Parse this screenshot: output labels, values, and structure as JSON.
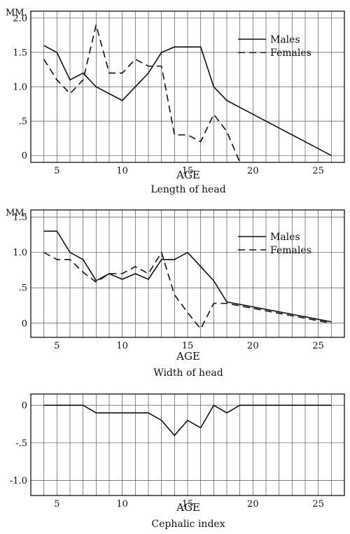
{
  "chart_data": [
    {
      "type": "line",
      "title": "",
      "caption": "Length of head",
      "xlabel": "AGE",
      "ylabel": "MM.",
      "xlim": [
        3,
        27
      ],
      "ylim": [
        -0.1,
        2.1
      ],
      "xticks": [
        5,
        10,
        15,
        20,
        25
      ],
      "xtick_labels": [
        "5",
        "10",
        "15",
        "20",
        "25"
      ],
      "yticks": [
        0,
        0.5,
        1.0,
        1.5,
        2.0
      ],
      "ytick_labels": [
        "0",
        ".5",
        "1.0",
        "1.5",
        "2.0"
      ],
      "grid": "vertical",
      "legend": "top-right",
      "series": [
        {
          "name": "Males",
          "style": "solid",
          "x": [
            4,
            5,
            6,
            7,
            8,
            10,
            12,
            13,
            14,
            16,
            17,
            18,
            26
          ],
          "y": [
            1.6,
            1.5,
            1.1,
            1.2,
            1.0,
            0.8,
            1.2,
            1.5,
            1.58,
            1.58,
            1.0,
            0.8,
            0.0
          ]
        },
        {
          "name": "Females",
          "style": "dashed",
          "x": [
            4,
            5,
            6,
            7,
            8,
            9,
            10,
            11,
            12,
            13,
            14,
            15,
            16,
            17,
            18,
            19
          ],
          "y": [
            1.4,
            1.1,
            0.9,
            1.1,
            1.9,
            1.2,
            1.2,
            1.4,
            1.3,
            1.3,
            0.3,
            0.3,
            0.2,
            0.6,
            0.35,
            -0.1
          ]
        }
      ]
    },
    {
      "type": "line",
      "title": "",
      "caption": "Width of head",
      "xlabel": "AGE",
      "ylabel": "MM.",
      "xlim": [
        3,
        27
      ],
      "ylim": [
        -0.2,
        1.6
      ],
      "xticks": [
        5,
        10,
        15,
        20,
        25
      ],
      "xtick_labels": [
        "5",
        "10",
        "15",
        "20",
        "25"
      ],
      "yticks": [
        0,
        0.5,
        1.0,
        1.5
      ],
      "ytick_labels": [
        "0",
        ".5",
        "1.0",
        "1.5"
      ],
      "grid": "vertical",
      "legend": "top-right",
      "series": [
        {
          "name": "Males",
          "style": "solid",
          "x": [
            4,
            5,
            6,
            7,
            8,
            9,
            10,
            11,
            12,
            13,
            14,
            15,
            16,
            17,
            18,
            26
          ],
          "y": [
            1.3,
            1.3,
            1.0,
            0.9,
            0.6,
            0.7,
            0.62,
            0.7,
            0.62,
            0.9,
            0.9,
            1.0,
            0.8,
            0.6,
            0.3,
            0.02
          ]
        },
        {
          "name": "Females",
          "style": "dashed",
          "x": [
            4,
            5,
            6,
            7,
            8,
            9,
            10,
            11,
            12,
            13,
            14,
            15,
            16,
            17,
            18,
            26
          ],
          "y": [
            1.0,
            0.9,
            0.9,
            0.72,
            0.58,
            0.7,
            0.7,
            0.8,
            0.7,
            1.0,
            0.4,
            0.15,
            -0.08,
            0.28,
            0.28,
            0.0
          ]
        }
      ]
    },
    {
      "type": "line",
      "title": "",
      "caption": "Cephalic index",
      "xlabel": "AGE",
      "ylabel": "",
      "xlim": [
        3,
        27
      ],
      "ylim": [
        -1.2,
        0.15
      ],
      "xticks": [
        5,
        10,
        15,
        20,
        25
      ],
      "xtick_labels": [
        "5",
        "10",
        "15",
        "20",
        "25"
      ],
      "yticks": [
        0,
        -0.5,
        -1.0
      ],
      "ytick_labels": [
        "0",
        "-.5",
        "-1.0"
      ],
      "grid": "vertical",
      "legend": "none",
      "series": [
        {
          "style": "solid",
          "x": [
            4,
            7,
            8,
            12,
            13,
            14,
            15,
            16,
            17,
            18,
            19,
            26
          ],
          "y": [
            0.0,
            0.0,
            -0.1,
            -0.1,
            -0.2,
            -0.4,
            -0.2,
            -0.3,
            0.0,
            -0.1,
            0.0,
            0.0
          ]
        }
      ]
    }
  ]
}
